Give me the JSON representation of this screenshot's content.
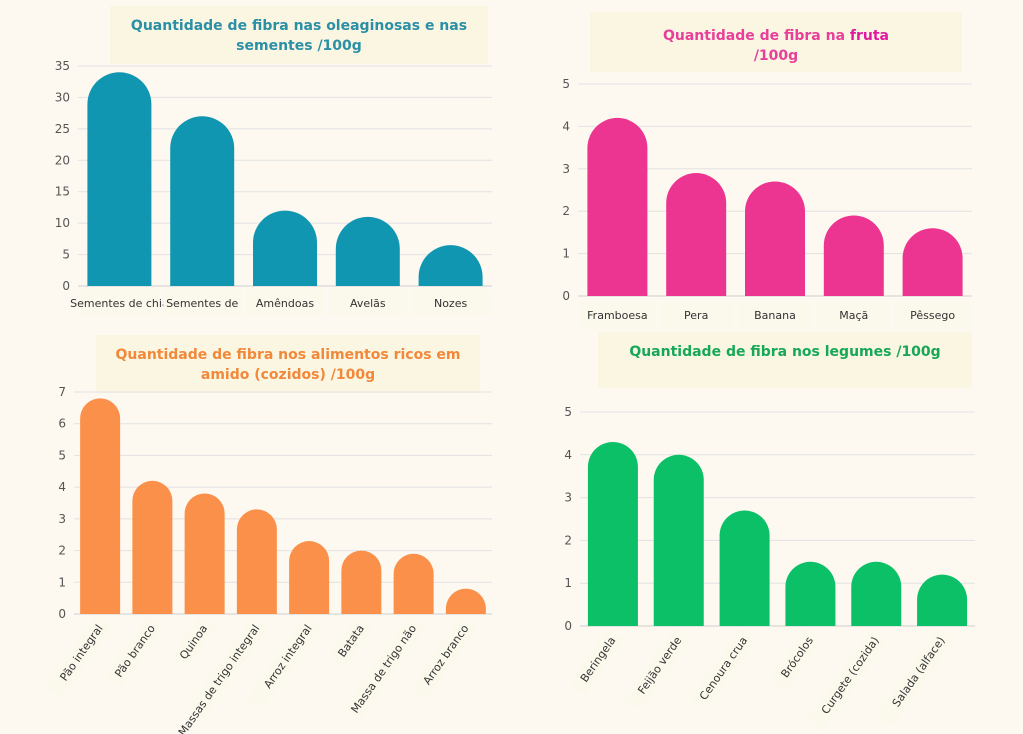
{
  "charts": [
    {
      "id": "nuts",
      "title": "Quantidade de fibra nas oleaginosas e nas sementes /100g",
      "title_color": "#2b8fa6",
      "color": "#1196b1",
      "chart_data": {
        "type": "bar",
        "title": "Quantidade de fibra nas oleaginosas e nas sementes /100g",
        "categories": [
          "Sementes de chia",
          "Sementes de",
          "Amêndoas",
          "Avelãs",
          "Nozes"
        ],
        "values": [
          34,
          27,
          12,
          11,
          6.5
        ],
        "yticks": [
          0,
          5,
          10,
          15,
          20,
          25,
          30,
          35
        ],
        "ylim": [
          0,
          35
        ],
        "grid": true
      }
    },
    {
      "id": "fruit",
      "title_parts": [
        "Quantidade de fibra na ",
        "fruta",
        "/100g"
      ],
      "title_color": "#e8409a",
      "color": "#ec3591",
      "chart_data": {
        "type": "bar",
        "title": "Quantidade de fibra na fruta /100g",
        "categories": [
          "Framboesa",
          "Pera",
          "Banana",
          "Maçã",
          "Pêssego"
        ],
        "values": [
          4.2,
          2.9,
          2.7,
          1.9,
          1.6
        ],
        "yticks": [
          0,
          1,
          2,
          3,
          4,
          5
        ],
        "ylim": [
          0,
          5
        ],
        "grid": true
      }
    },
    {
      "id": "starch",
      "title": "Quantidade de fibra nos alimentos ricos em amido (cozidos) /100g",
      "title_color": "#f2883a",
      "color": "#fb904a",
      "chart_data": {
        "type": "bar",
        "title": "Quantidade de fibra nos alimentos ricos em amido (cozidos) /100g",
        "categories": [
          "Pão integral",
          "Pão branco",
          "Quinoa",
          "Massas de trigo integral",
          "Arroz integral",
          "Batata",
          "Massa de trigo não",
          "Arroz branco"
        ],
        "values": [
          6.8,
          4.2,
          3.8,
          3.3,
          2.3,
          2.0,
          1.9,
          0.8
        ],
        "yticks": [
          0,
          1,
          2,
          3,
          4,
          5,
          6,
          7
        ],
        "ylim": [
          0,
          7
        ],
        "grid": true
      }
    },
    {
      "id": "veg",
      "title": "Quantidade de fibra nos legumes /100g",
      "title_color": "#16a857",
      "color": "#0bc066",
      "chart_data": {
        "type": "bar",
        "title": "Quantidade de fibra nos legumes /100g",
        "categories": [
          "Beringela",
          "Feijão verde",
          "Cenoura crua",
          "Brócolos",
          "Curgete (cozida)",
          "Salada (alface)"
        ],
        "values": [
          4.3,
          4.0,
          2.7,
          1.5,
          1.5,
          1.2
        ],
        "yticks": [
          0,
          1,
          2,
          3,
          4,
          5
        ],
        "ylim": [
          0,
          5
        ],
        "grid": true
      }
    }
  ]
}
